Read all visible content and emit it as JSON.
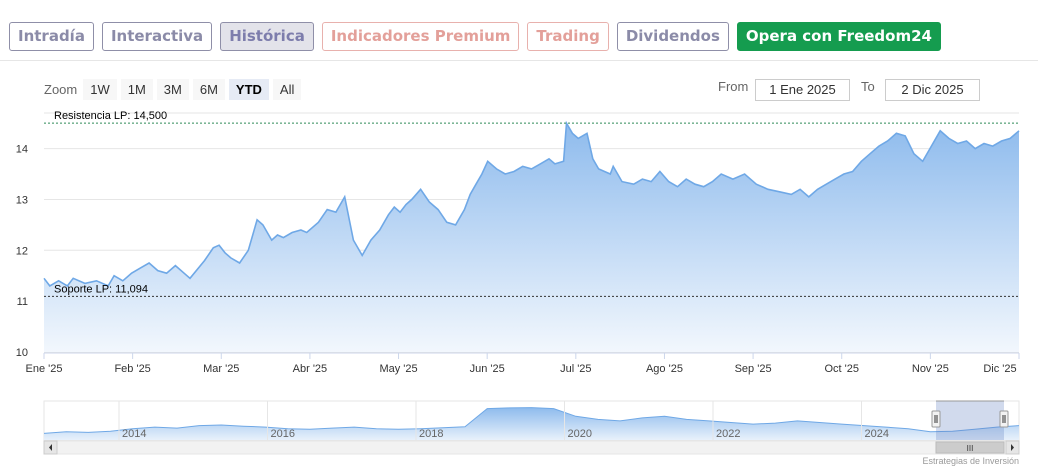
{
  "tabs": [
    {
      "label": "Intradía",
      "style": "gray"
    },
    {
      "label": "Interactiva",
      "style": "gray"
    },
    {
      "label": "Histórica",
      "style": "active"
    },
    {
      "label": "Indicadores Premium",
      "style": "pink"
    },
    {
      "label": "Trading",
      "style": "pink"
    },
    {
      "label": "Dividendos",
      "style": "gray"
    },
    {
      "label": "Opera con Freedom24",
      "style": "green"
    }
  ],
  "zoom": {
    "label": "Zoom",
    "options": [
      "1W",
      "1M",
      "3M",
      "6M",
      "YTD",
      "All"
    ],
    "selected": "YTD"
  },
  "range": {
    "from_label": "From",
    "from_value": "1 Ene 2025",
    "to_label": "To",
    "to_value": "2 Dic 2025"
  },
  "chart_data": {
    "type": "area",
    "x_tick_labels": [
      "Ene '25",
      "Feb '25",
      "Mar '25",
      "Abr '25",
      "May '25",
      "Jun '25",
      "Jul '25",
      "Ago '25",
      "Sep '25",
      "Oct '25",
      "Nov '25",
      "Dic '25"
    ],
    "y_ticks": [
      10,
      11,
      12,
      13,
      14
    ],
    "ylim": [
      10,
      14.7
    ],
    "grid": true,
    "x": [
      0,
      2,
      5,
      8,
      10,
      14,
      18,
      22,
      24,
      27,
      30,
      33,
      36,
      39,
      42,
      45,
      48,
      50,
      55,
      58,
      60,
      62,
      64,
      67,
      70,
      73,
      75,
      78,
      80,
      82,
      85,
      88,
      90,
      94,
      97,
      100,
      103,
      106,
      109,
      112,
      115,
      118,
      120,
      122,
      124,
      126,
      129,
      132,
      135,
      138,
      141,
      144,
      146,
      148,
      150,
      152,
      155,
      158,
      161,
      164,
      167,
      170,
      173,
      175,
      178,
      179,
      181,
      183,
      186,
      188,
      190,
      192,
      194,
      195,
      198,
      202,
      205,
      208,
      211,
      214,
      217,
      220,
      223,
      226,
      229,
      232,
      236,
      240,
      244,
      248,
      252,
      256,
      259,
      262,
      265,
      268,
      271,
      274,
      277,
      280,
      283,
      286,
      289,
      292,
      295,
      298,
      301,
      304,
      307,
      310,
      313,
      316,
      319,
      322,
      325,
      328,
      331,
      334
    ],
    "values": [
      11.45,
      11.3,
      11.4,
      11.3,
      11.45,
      11.35,
      11.4,
      11.3,
      11.5,
      11.4,
      11.55,
      11.65,
      11.75,
      11.6,
      11.55,
      11.7,
      11.55,
      11.45,
      11.8,
      12.05,
      12.1,
      11.95,
      11.85,
      11.75,
      12.0,
      12.6,
      12.5,
      12.2,
      12.3,
      12.25,
      12.35,
      12.4,
      12.35,
      12.55,
      12.8,
      12.75,
      13.05,
      12.2,
      11.9,
      12.2,
      12.4,
      12.7,
      12.85,
      12.75,
      12.9,
      13.0,
      13.2,
      12.95,
      12.8,
      12.55,
      12.5,
      12.8,
      13.1,
      13.3,
      13.5,
      13.75,
      13.6,
      13.5,
      13.55,
      13.65,
      13.6,
      13.7,
      13.8,
      13.7,
      13.75,
      14.5,
      14.3,
      14.2,
      14.3,
      13.8,
      13.6,
      13.55,
      13.5,
      13.65,
      13.35,
      13.3,
      13.4,
      13.35,
      13.55,
      13.35,
      13.25,
      13.4,
      13.3,
      13.25,
      13.35,
      13.5,
      13.4,
      13.5,
      13.3,
      13.2,
      13.15,
      13.1,
      13.2,
      13.05,
      13.2,
      13.3,
      13.4,
      13.5,
      13.55,
      13.75,
      13.9,
      14.05,
      14.15,
      14.3,
      14.25,
      13.9,
      13.75,
      14.05,
      14.35,
      14.2,
      14.1,
      14.15,
      14.0,
      14.1,
      14.05,
      14.15,
      14.2,
      14.35
    ],
    "plot_lines": [
      {
        "label": "Resistencia LP: 14,500",
        "value": 14.5,
        "color": "#2e8b57"
      },
      {
        "label": "Soporte LP: 11,094",
        "value": 11.094,
        "color": "#333333"
      }
    ],
    "line_color": "#6fa8e6",
    "fill_top": "#8ebbed",
    "fill_bottom": "#f2f7fd"
  },
  "navigator": {
    "year_labels": [
      "2014",
      "2016",
      "2018",
      "2020",
      "2022",
      "2024"
    ],
    "values": [
      0.15,
      0.2,
      0.18,
      0.22,
      0.3,
      0.35,
      0.32,
      0.4,
      0.42,
      0.38,
      0.35,
      0.3,
      0.28,
      0.32,
      0.35,
      0.3,
      0.28,
      0.3,
      0.33,
      0.36,
      0.95,
      0.97,
      0.98,
      0.95,
      0.7,
      0.6,
      0.55,
      0.65,
      0.7,
      0.6,
      0.55,
      0.5,
      0.45,
      0.48,
      0.55,
      0.5,
      0.45,
      0.4,
      0.35,
      0.3,
      0.2,
      0.22,
      0.28,
      0.35,
      0.4
    ]
  },
  "scroll_grip": "III",
  "credits": "Estrategias de Inversión"
}
